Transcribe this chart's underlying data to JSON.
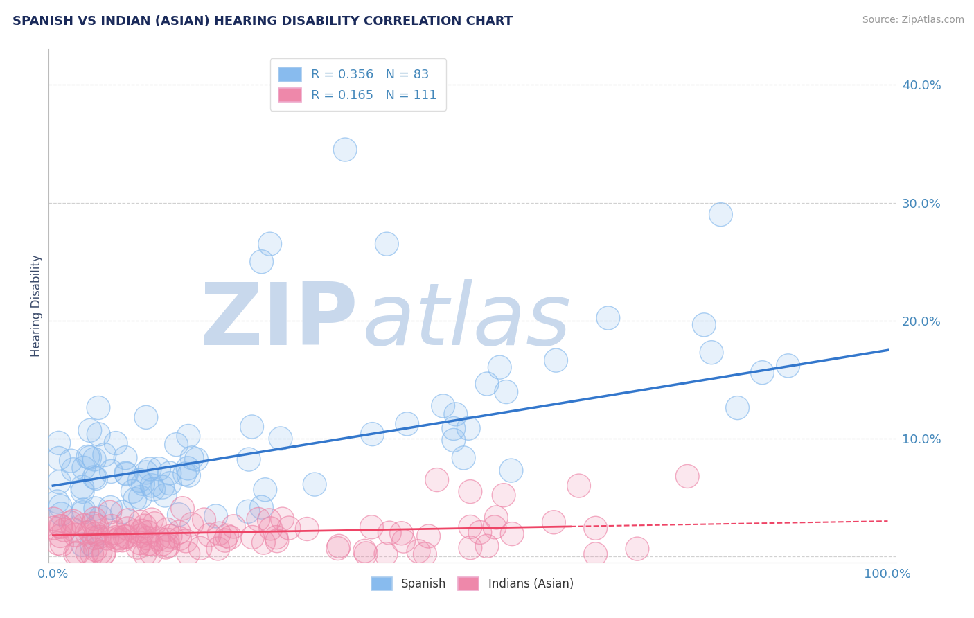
{
  "title": "SPANISH VS INDIAN (ASIAN) HEARING DISABILITY CORRELATION CHART",
  "source": "Source: ZipAtlas.com",
  "ylabel": "Hearing Disability",
  "xlim": [
    -0.005,
    1.01
  ],
  "ylim": [
    -0.005,
    0.43
  ],
  "yticks": [
    0.0,
    0.1,
    0.2,
    0.3,
    0.4
  ],
  "xticks": [
    0.0,
    1.0
  ],
  "watermark_zip": "ZIP",
  "watermark_atlas": "atlas",
  "watermark_color": "#c8d8ec",
  "background_color": "#ffffff",
  "grid_color": "#cccccc",
  "title_color": "#1a2a5a",
  "axis_label_color": "#3a4a6a",
  "tick_color": "#4488bb",
  "blue_color": "#88bbee",
  "pink_color": "#ee88aa",
  "blue_line_color": "#3377cc",
  "pink_line_color": "#ee4466",
  "R_spanish": 0.356,
  "N_spanish": 83,
  "R_indian": 0.165,
  "N_indian": 111,
  "sp_line_x0": 0.0,
  "sp_line_y0": 0.06,
  "sp_line_x1": 1.0,
  "sp_line_y1": 0.175,
  "in_line_x0": 0.0,
  "in_line_y0": 0.018,
  "in_line_x1": 1.0,
  "in_line_y1": 0.03,
  "in_line_solid_end": 0.62
}
